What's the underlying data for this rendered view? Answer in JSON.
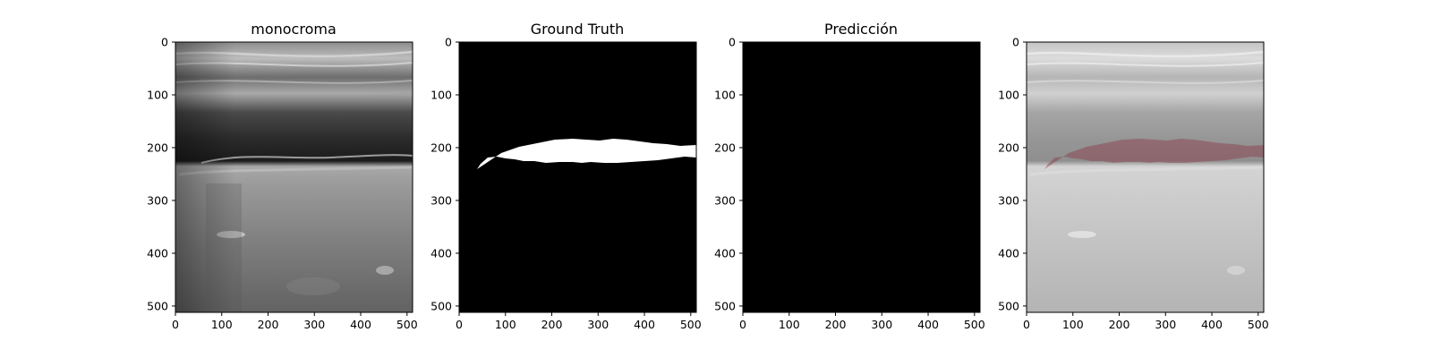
{
  "figure": {
    "panels": [
      {
        "title": "monocroma",
        "content": "ultrasound-grayscale"
      },
      {
        "title": "Ground Truth",
        "content": "binary-mask"
      },
      {
        "title": "Predicción",
        "content": "empty-mask"
      },
      {
        "title": "",
        "content": "overlay"
      }
    ],
    "x_ticks": [
      "0",
      "100",
      "200",
      "300",
      "400",
      "500"
    ],
    "y_ticks": [
      "0",
      "100",
      "200",
      "300",
      "400",
      "500"
    ],
    "axis_range": {
      "x": [
        0,
        512
      ],
      "y": [
        512,
        0
      ]
    },
    "mask_color": "#ffffff",
    "background_color": "#000000",
    "overlay_color": "#8a3a48"
  }
}
